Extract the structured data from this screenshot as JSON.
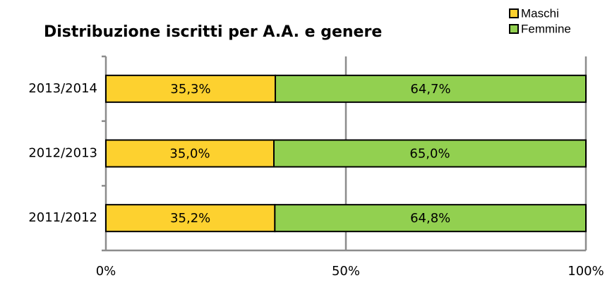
{
  "chart_data": {
    "type": "stacked_barh",
    "title": "Distribuzione iscritti per A.A. e genere",
    "categories": [
      "2011/2012",
      "2012/2013",
      "2013/2014"
    ],
    "series": [
      {
        "name": "Maschi",
        "color": "#fdd12f",
        "values": [
          35.2,
          35.0,
          35.3
        ],
        "value_labels": [
          "35,2%",
          "35,0%",
          "35,3%"
        ]
      },
      {
        "name": "Femmine",
        "color": "#92d050",
        "values": [
          64.8,
          65.0,
          64.7
        ],
        "value_labels": [
          "64,8%",
          "65,0%",
          "64,7%"
        ]
      }
    ],
    "xlim": [
      0,
      100
    ],
    "xticks": [
      {
        "value": 0,
        "label": "0%"
      },
      {
        "value": 50,
        "label": "50%"
      },
      {
        "value": 100,
        "label": "100%"
      }
    ],
    "grid": true,
    "legend": "top-right"
  }
}
